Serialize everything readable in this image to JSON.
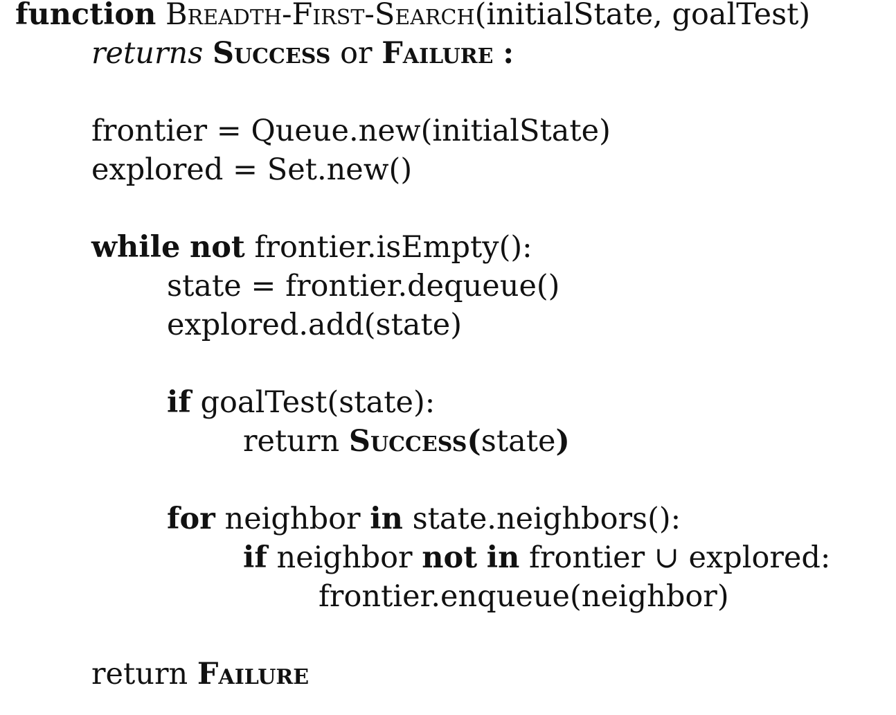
{
  "algorithm": {
    "header": {
      "function_kw": "function",
      "name": "Breadth-First-Search",
      "params": "(initialState, goalTest)"
    },
    "returns_line": {
      "returns_word": "returns",
      "success": "Success",
      "or_word": "or",
      "failure": "Failure",
      "colon": ":"
    },
    "init": {
      "frontier_line": "frontier = Queue.new(initialState)",
      "explored_line": "explored = Set.new()"
    },
    "while_loop": {
      "while_kw": "while",
      "not_kw": "not",
      "condition": "frontier.isEmpty():",
      "dequeue_line": "state = frontier.dequeue()",
      "add_line": "explored.add(state)"
    },
    "if_goal": {
      "if_kw": "if",
      "condition": "goalTest(state):",
      "return_word": "return",
      "success": "Success",
      "open_paren": "(",
      "arg": "state",
      "close_paren": ")"
    },
    "for_loop": {
      "for_kw": "for",
      "var": "neighbor",
      "in_kw": "in",
      "iter": "state.neighbors():",
      "inner_if_kw": "if",
      "inner_var": "neighbor",
      "not_kw": "not",
      "in_kw2": "in",
      "union_expr": "frontier ∪ explored:",
      "enqueue_line": "frontier.enqueue(neighbor)"
    },
    "final_return": {
      "return_word": "return",
      "failure": "Failure"
    }
  }
}
